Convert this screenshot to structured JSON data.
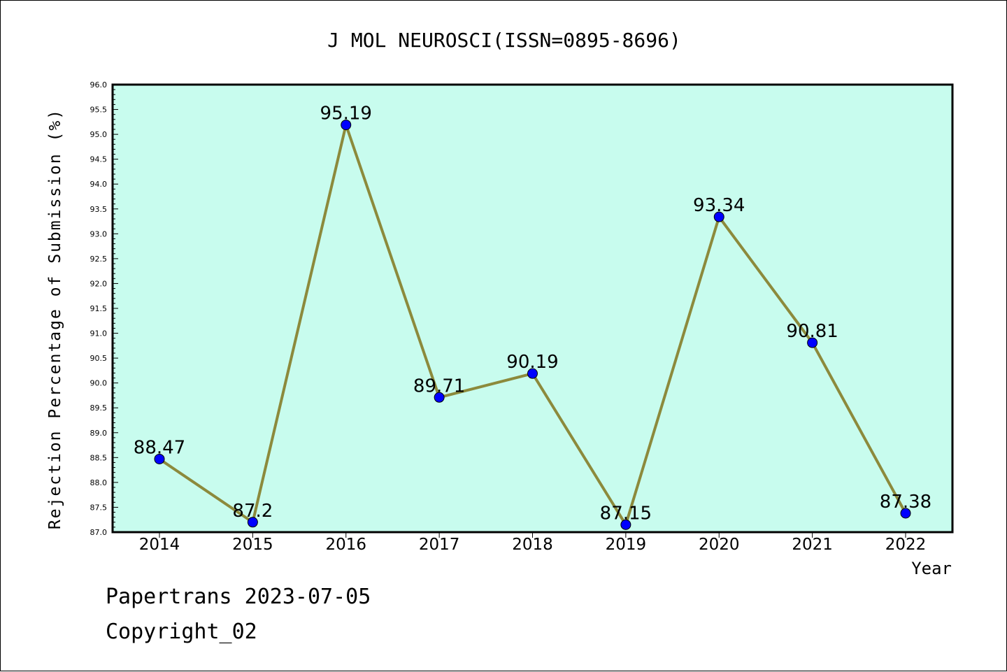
{
  "chart_data": {
    "type": "line",
    "title": "J MOL NEUROSCI(ISSN=0895-8696)",
    "xlabel": "Year",
    "ylabel": "Rejection Percentage of Submission (%)",
    "categories": [
      "2014",
      "2015",
      "2016",
      "2017",
      "2018",
      "2019",
      "2020",
      "2021",
      "2022"
    ],
    "values": [
      88.47,
      87.2,
      95.19,
      89.71,
      90.19,
      87.15,
      93.34,
      90.81,
      87.38
    ],
    "data_labels": [
      "88.47",
      "87.2",
      "95.19",
      "89.71",
      "90.19",
      "87.15",
      "93.34",
      "90.81",
      "87.38"
    ],
    "ylim": [
      87.0,
      96.0
    ],
    "y_ticks": [
      "87.0",
      "87.5",
      "88.0",
      "88.5",
      "89.0",
      "89.5",
      "90.0",
      "90.5",
      "91.0",
      "91.5",
      "92.0",
      "92.5",
      "93.0",
      "93.5",
      "94.0",
      "94.5",
      "95.0",
      "95.5",
      "96.0"
    ],
    "grid": false,
    "colors": {
      "plot_background": "#c8fcee",
      "line": "#8c8a3c",
      "marker": "#0000ff"
    }
  },
  "footer": {
    "line1": "Papertrans 2023-07-05",
    "line2": "Copyright_02"
  }
}
